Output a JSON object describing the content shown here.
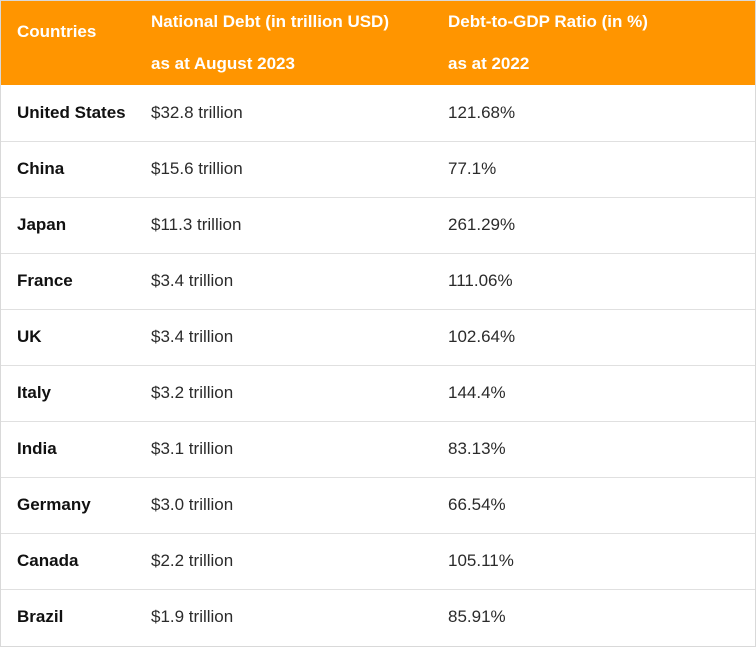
{
  "table": {
    "headers": {
      "country": "Countries",
      "debt_line1": "National Debt (in trillion USD)",
      "debt_line2": "as at August 2023",
      "ratio_line1": "Debt-to-GDP Ratio (in %)",
      "ratio_line2": "as at 2022"
    },
    "rows": [
      {
        "country": "United States",
        "debt": "$32.8 trillion",
        "ratio": "121.68%"
      },
      {
        "country": "China",
        "debt": "$15.6 trillion",
        "ratio": "77.1%"
      },
      {
        "country": "Japan",
        "debt": "$11.3 trillion",
        "ratio": "261.29%"
      },
      {
        "country": "France",
        "debt": "$3.4 trillion",
        "ratio": "111.06%"
      },
      {
        "country": "UK",
        "debt": "$3.4 trillion",
        "ratio": "102.64%"
      },
      {
        "country": "Italy",
        "debt": "$3.2 trillion",
        "ratio": "144.4%"
      },
      {
        "country": "India",
        "debt": "$3.1 trillion",
        "ratio": "83.13%"
      },
      {
        "country": "Germany",
        "debt": "$3.0 trillion",
        "ratio": "66.54%"
      },
      {
        "country": "Canada",
        "debt": "$2.2 trillion",
        "ratio": "105.11%"
      },
      {
        "country": "Brazil",
        "debt": "$1.9 trillion",
        "ratio": "85.91%"
      }
    ]
  },
  "colors": {
    "header_bg": "#ff9500",
    "header_text": "#ffffff",
    "row_divider": "#e0e0e0"
  }
}
